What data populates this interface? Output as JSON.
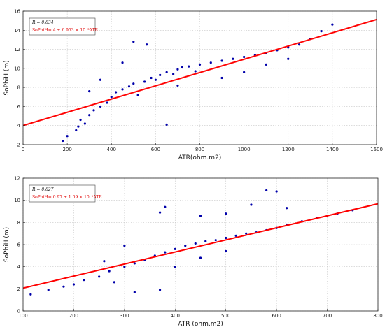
{
  "chart_data": [
    {
      "type": "scatter",
      "xlabel": "ATR(ohm.m2)",
      "ylabel": "SoPhiH (m)",
      "xlim": [
        0,
        1600
      ],
      "ylim": [
        2,
        16
      ],
      "xticks": [
        "0",
        "200",
        "400",
        "600",
        "800",
        "1000",
        "1200",
        "1400",
        "1600"
      ],
      "yticks": [
        "2",
        "4",
        "6",
        "8",
        "10",
        "12",
        "14",
        "16"
      ],
      "grid": true,
      "legend_position": "top-left",
      "legend": {
        "r_label": "R = 0.834",
        "eq_label": "SoPhiH= 4 + 6.953 × 10⁻³ATR"
      },
      "fit": {
        "intercept": 4.0,
        "slope": 0.006953,
        "color": "#ff0000"
      },
      "points_color": "#0000aa",
      "points": [
        [
          180,
          2.4
        ],
        [
          200,
          2.9
        ],
        [
          240,
          3.5
        ],
        [
          250,
          3.9
        ],
        [
          260,
          4.6
        ],
        [
          280,
          4.2
        ],
        [
          300,
          5.1
        ],
        [
          320,
          5.6
        ],
        [
          350,
          6.0
        ],
        [
          380,
          6.4
        ],
        [
          400,
          7.0
        ],
        [
          420,
          7.5
        ],
        [
          450,
          7.8
        ],
        [
          480,
          8.1
        ],
        [
          500,
          8.4
        ],
        [
          520,
          7.2
        ],
        [
          550,
          8.6
        ],
        [
          580,
          9.0
        ],
        [
          600,
          8.8
        ],
        [
          620,
          9.3
        ],
        [
          650,
          9.6
        ],
        [
          680,
          9.4
        ],
        [
          700,
          9.9
        ],
        [
          720,
          10.1
        ],
        [
          750,
          10.2
        ],
        [
          780,
          9.7
        ],
        [
          800,
          10.4
        ],
        [
          850,
          10.6
        ],
        [
          900,
          10.8
        ],
        [
          950,
          11.0
        ],
        [
          1000,
          11.2
        ],
        [
          1050,
          11.4
        ],
        [
          1100,
          11.6
        ],
        [
          1150,
          11.9
        ],
        [
          1200,
          12.2
        ],
        [
          1250,
          12.5
        ],
        [
          1300,
          13.1
        ],
        [
          1350,
          13.9
        ],
        [
          1400,
          14.6
        ],
        [
          350,
          8.8
        ],
        [
          450,
          10.6
        ],
        [
          500,
          12.8
        ],
        [
          560,
          12.5
        ],
        [
          650,
          4.1
        ],
        [
          300,
          7.6
        ],
        [
          700,
          8.2
        ],
        [
          900,
          9.0
        ],
        [
          1000,
          9.6
        ],
        [
          1100,
          10.4
        ],
        [
          1200,
          11.0
        ]
      ]
    },
    {
      "type": "scatter",
      "xlabel": "ATR (ohm.m2)",
      "ylabel": "SoPhiH (m)",
      "xlim": [
        100,
        800
      ],
      "ylim": [
        0,
        12
      ],
      "xticks": [
        "100",
        "200",
        "300",
        "400",
        "500",
        "600",
        "700",
        "800"
      ],
      "yticks": [
        "0",
        "2",
        "4",
        "6",
        "8",
        "10",
        "12"
      ],
      "grid": true,
      "legend_position": "top-left",
      "legend": {
        "r_label": "R = 0.827",
        "eq_label": "SoPhiH= 0.97 + 1.09 × 10⁻²ATR"
      },
      "fit": {
        "intercept": 0.97,
        "slope": 0.0109,
        "color": "#ff0000"
      },
      "points_color": "#0000aa",
      "points": [
        [
          115,
          1.5
        ],
        [
          150,
          1.9
        ],
        [
          180,
          2.2
        ],
        [
          200,
          2.4
        ],
        [
          220,
          2.8
        ],
        [
          250,
          3.1
        ],
        [
          270,
          3.6
        ],
        [
          300,
          4.0
        ],
        [
          320,
          4.3
        ],
        [
          340,
          4.6
        ],
        [
          360,
          5.0
        ],
        [
          380,
          5.3
        ],
        [
          400,
          5.6
        ],
        [
          420,
          5.9
        ],
        [
          440,
          6.1
        ],
        [
          460,
          6.3
        ],
        [
          480,
          6.4
        ],
        [
          500,
          6.6
        ],
        [
          520,
          6.8
        ],
        [
          540,
          7.0
        ],
        [
          560,
          7.1
        ],
        [
          580,
          7.3
        ],
        [
          600,
          7.5
        ],
        [
          620,
          7.8
        ],
        [
          650,
          8.1
        ],
        [
          680,
          8.4
        ],
        [
          700,
          8.6
        ],
        [
          720,
          8.8
        ],
        [
          750,
          9.1
        ],
        [
          380,
          9.4
        ],
        [
          370,
          8.9
        ],
        [
          600,
          10.8
        ],
        [
          580,
          10.9
        ],
        [
          320,
          1.7
        ],
        [
          370,
          1.9
        ],
        [
          300,
          5.9
        ],
        [
          450,
          8.6
        ],
        [
          500,
          8.8
        ],
        [
          550,
          9.6
        ],
        [
          620,
          9.3
        ],
        [
          400,
          4.0
        ],
        [
          450,
          4.8
        ],
        [
          500,
          5.4
        ],
        [
          260,
          4.5
        ],
        [
          280,
          2.6
        ]
      ]
    }
  ]
}
